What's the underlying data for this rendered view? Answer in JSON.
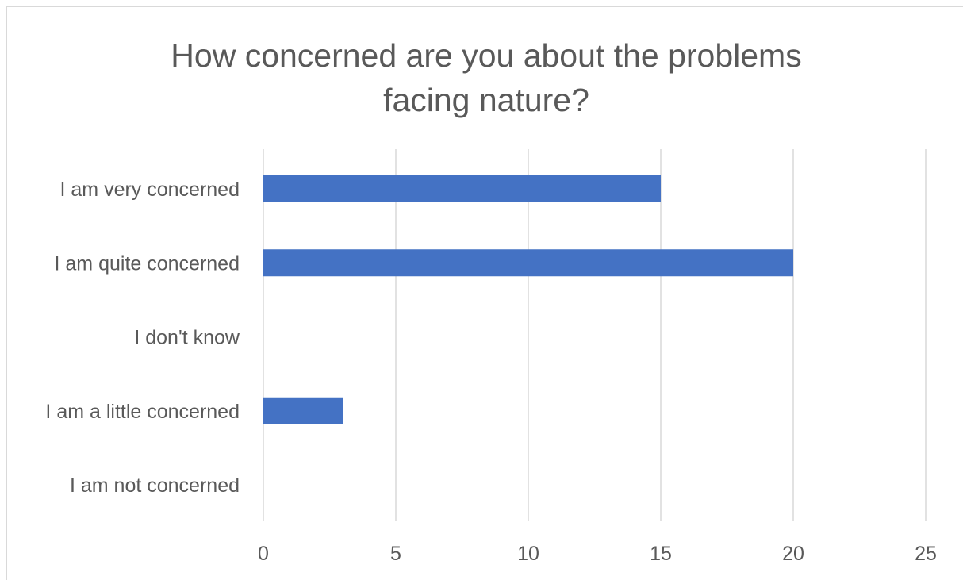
{
  "chart_data": {
    "type": "bar",
    "orientation": "horizontal",
    "title_lines": [
      "How concerned are you about the problems",
      "facing nature?"
    ],
    "categories": [
      "I am very concerned",
      "I am quite concerned",
      "I don't know",
      "I am a little concerned",
      "I am not concerned"
    ],
    "values": [
      15,
      20,
      0,
      3,
      0
    ],
    "xlim": [
      0,
      25
    ],
    "x_ticks": [
      "0",
      "5",
      "10",
      "15",
      "20",
      "25"
    ],
    "grid": "vertical",
    "legend": "none",
    "bar_color": "#4472C4"
  }
}
